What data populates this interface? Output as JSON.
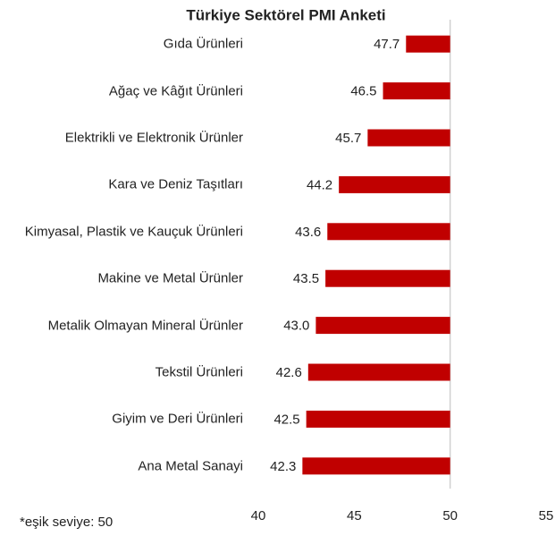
{
  "chart_data": {
    "type": "hbar",
    "title": "Türkiye Sektörel PMI Anketi",
    "categories": [
      "Gıda Ürünleri",
      "Ağaç ve Kâğıt Ürünleri",
      "Elektrikli ve Elektronik Ürünler",
      "Kara ve Deniz Taşıtları",
      "Kimyasal, Plastik ve Kauçuk Ürünleri",
      "Makine ve Metal Ürünler",
      "Metalik Olmayan Mineral Ürünler",
      "Tekstil Ürünleri",
      "Giyim ve Deri Ürünleri",
      "Ana Metal Sanayi"
    ],
    "values": [
      47.7,
      46.5,
      45.7,
      44.2,
      43.6,
      43.5,
      43.0,
      42.6,
      42.5,
      42.3
    ],
    "value_labels": [
      "47.7",
      "46.5",
      "45.7",
      "44.2",
      "43.6",
      "43.5",
      "43.0",
      "42.6",
      "42.5",
      "42.3"
    ],
    "color": "#c00000",
    "base": 50,
    "xlim": [
      40,
      55
    ],
    "xticks": [
      40,
      45,
      50,
      55
    ],
    "footnote": "*eşik seviye: 50"
  }
}
